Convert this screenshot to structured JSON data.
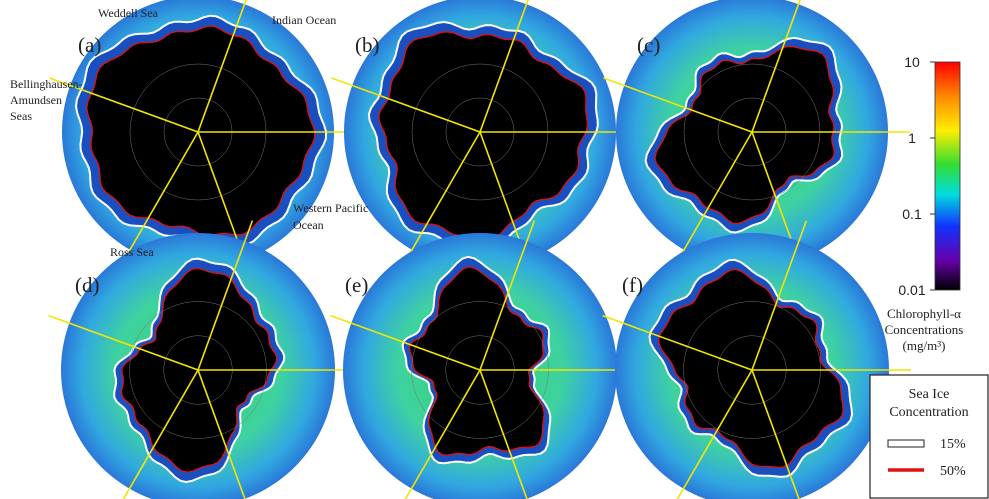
{
  "panels": [
    {
      "label": "(a)"
    },
    {
      "label": "(b)"
    },
    {
      "label": "(c)"
    },
    {
      "label": "(d)"
    },
    {
      "label": "(e)"
    },
    {
      "label": "(f)"
    }
  ],
  "region_labels": {
    "weddell_sea": "Weddell Sea",
    "indian_ocean": "Indian Ocean",
    "bellinghausen": [
      "Bellinghausen-",
      "Amundsen",
      "Seas"
    ],
    "western_pacific": [
      "Western Pacific",
      "Ocean"
    ],
    "ross_sea": "Ross Sea"
  },
  "colorbar": {
    "title": [
      "Chlorophyll-α",
      "Concentrations",
      "(mg/m³)"
    ],
    "range": [
      0.01,
      10
    ],
    "scale": "log",
    "ticks": [
      0.01,
      0.1,
      1,
      10
    ]
  },
  "legend": {
    "title": [
      "Sea Ice",
      "Concentration"
    ],
    "items": [
      {
        "label": "15%",
        "color": "#ffffff"
      },
      {
        "label": "50%",
        "color": "#e01010"
      }
    ]
  }
}
